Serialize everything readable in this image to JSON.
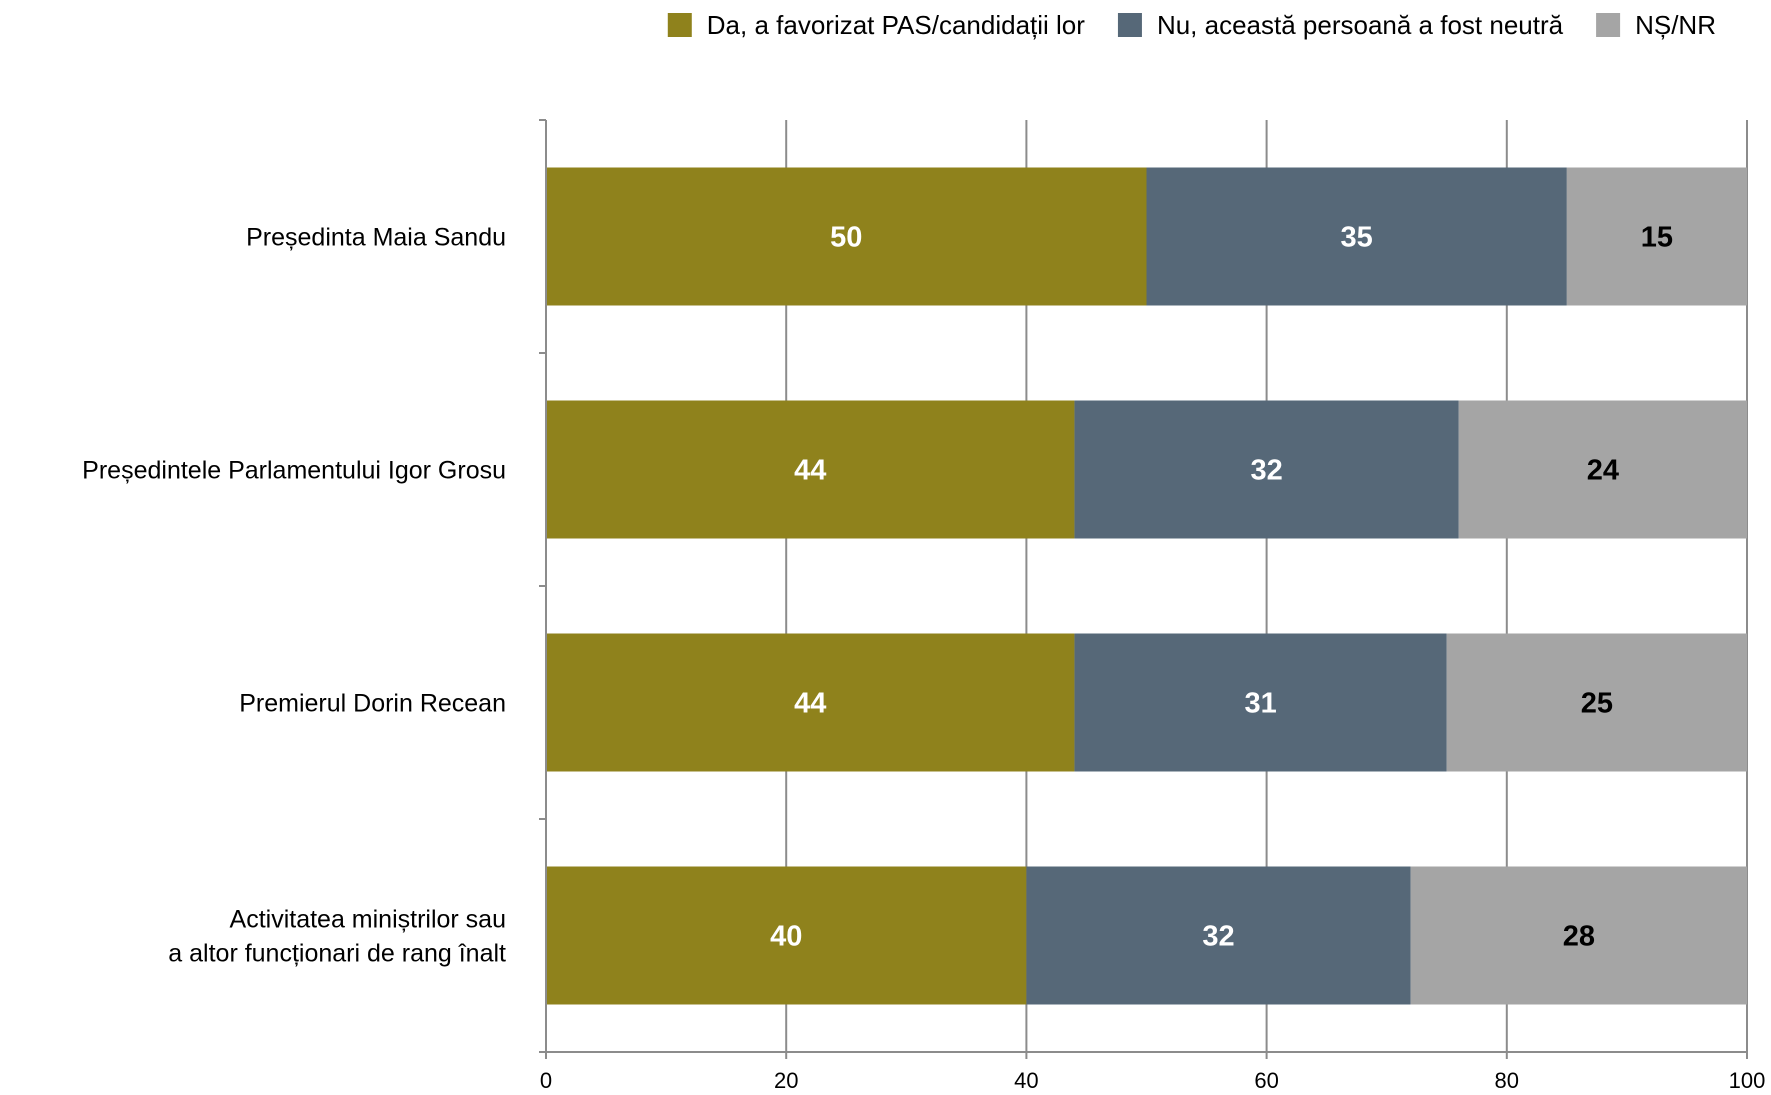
{
  "chart_data": {
    "type": "bar",
    "orientation": "horizontal",
    "stacked": true,
    "categories": [
      [
        "Președinta Maia Sandu"
      ],
      [
        "Președintele Parlamentului Igor Grosu"
      ],
      [
        "Premierul Dorin Recean"
      ],
      [
        "Activitatea miniștrilor sau",
        "a altor funcționari de rang înalt"
      ]
    ],
    "series": [
      {
        "name": "Da, a favorizat PAS/candidații lor",
        "color": "#8F821C",
        "label_color": "#FFFFFF",
        "values": [
          50,
          44,
          44,
          40
        ]
      },
      {
        "name": "Nu, această persoană a fost neutră",
        "color": "#566878",
        "label_color": "#FFFFFF",
        "values": [
          35,
          32,
          31,
          32
        ]
      },
      {
        "name": "NȘ/NR",
        "color": "#A5A5A5",
        "label_color": "#000000",
        "values": [
          15,
          24,
          25,
          28
        ]
      }
    ],
    "xlim": [
      0,
      100
    ],
    "xticks": [
      "0",
      "20",
      "40",
      "60",
      "80",
      "100"
    ],
    "grid": true,
    "legend_position": "top-right"
  }
}
